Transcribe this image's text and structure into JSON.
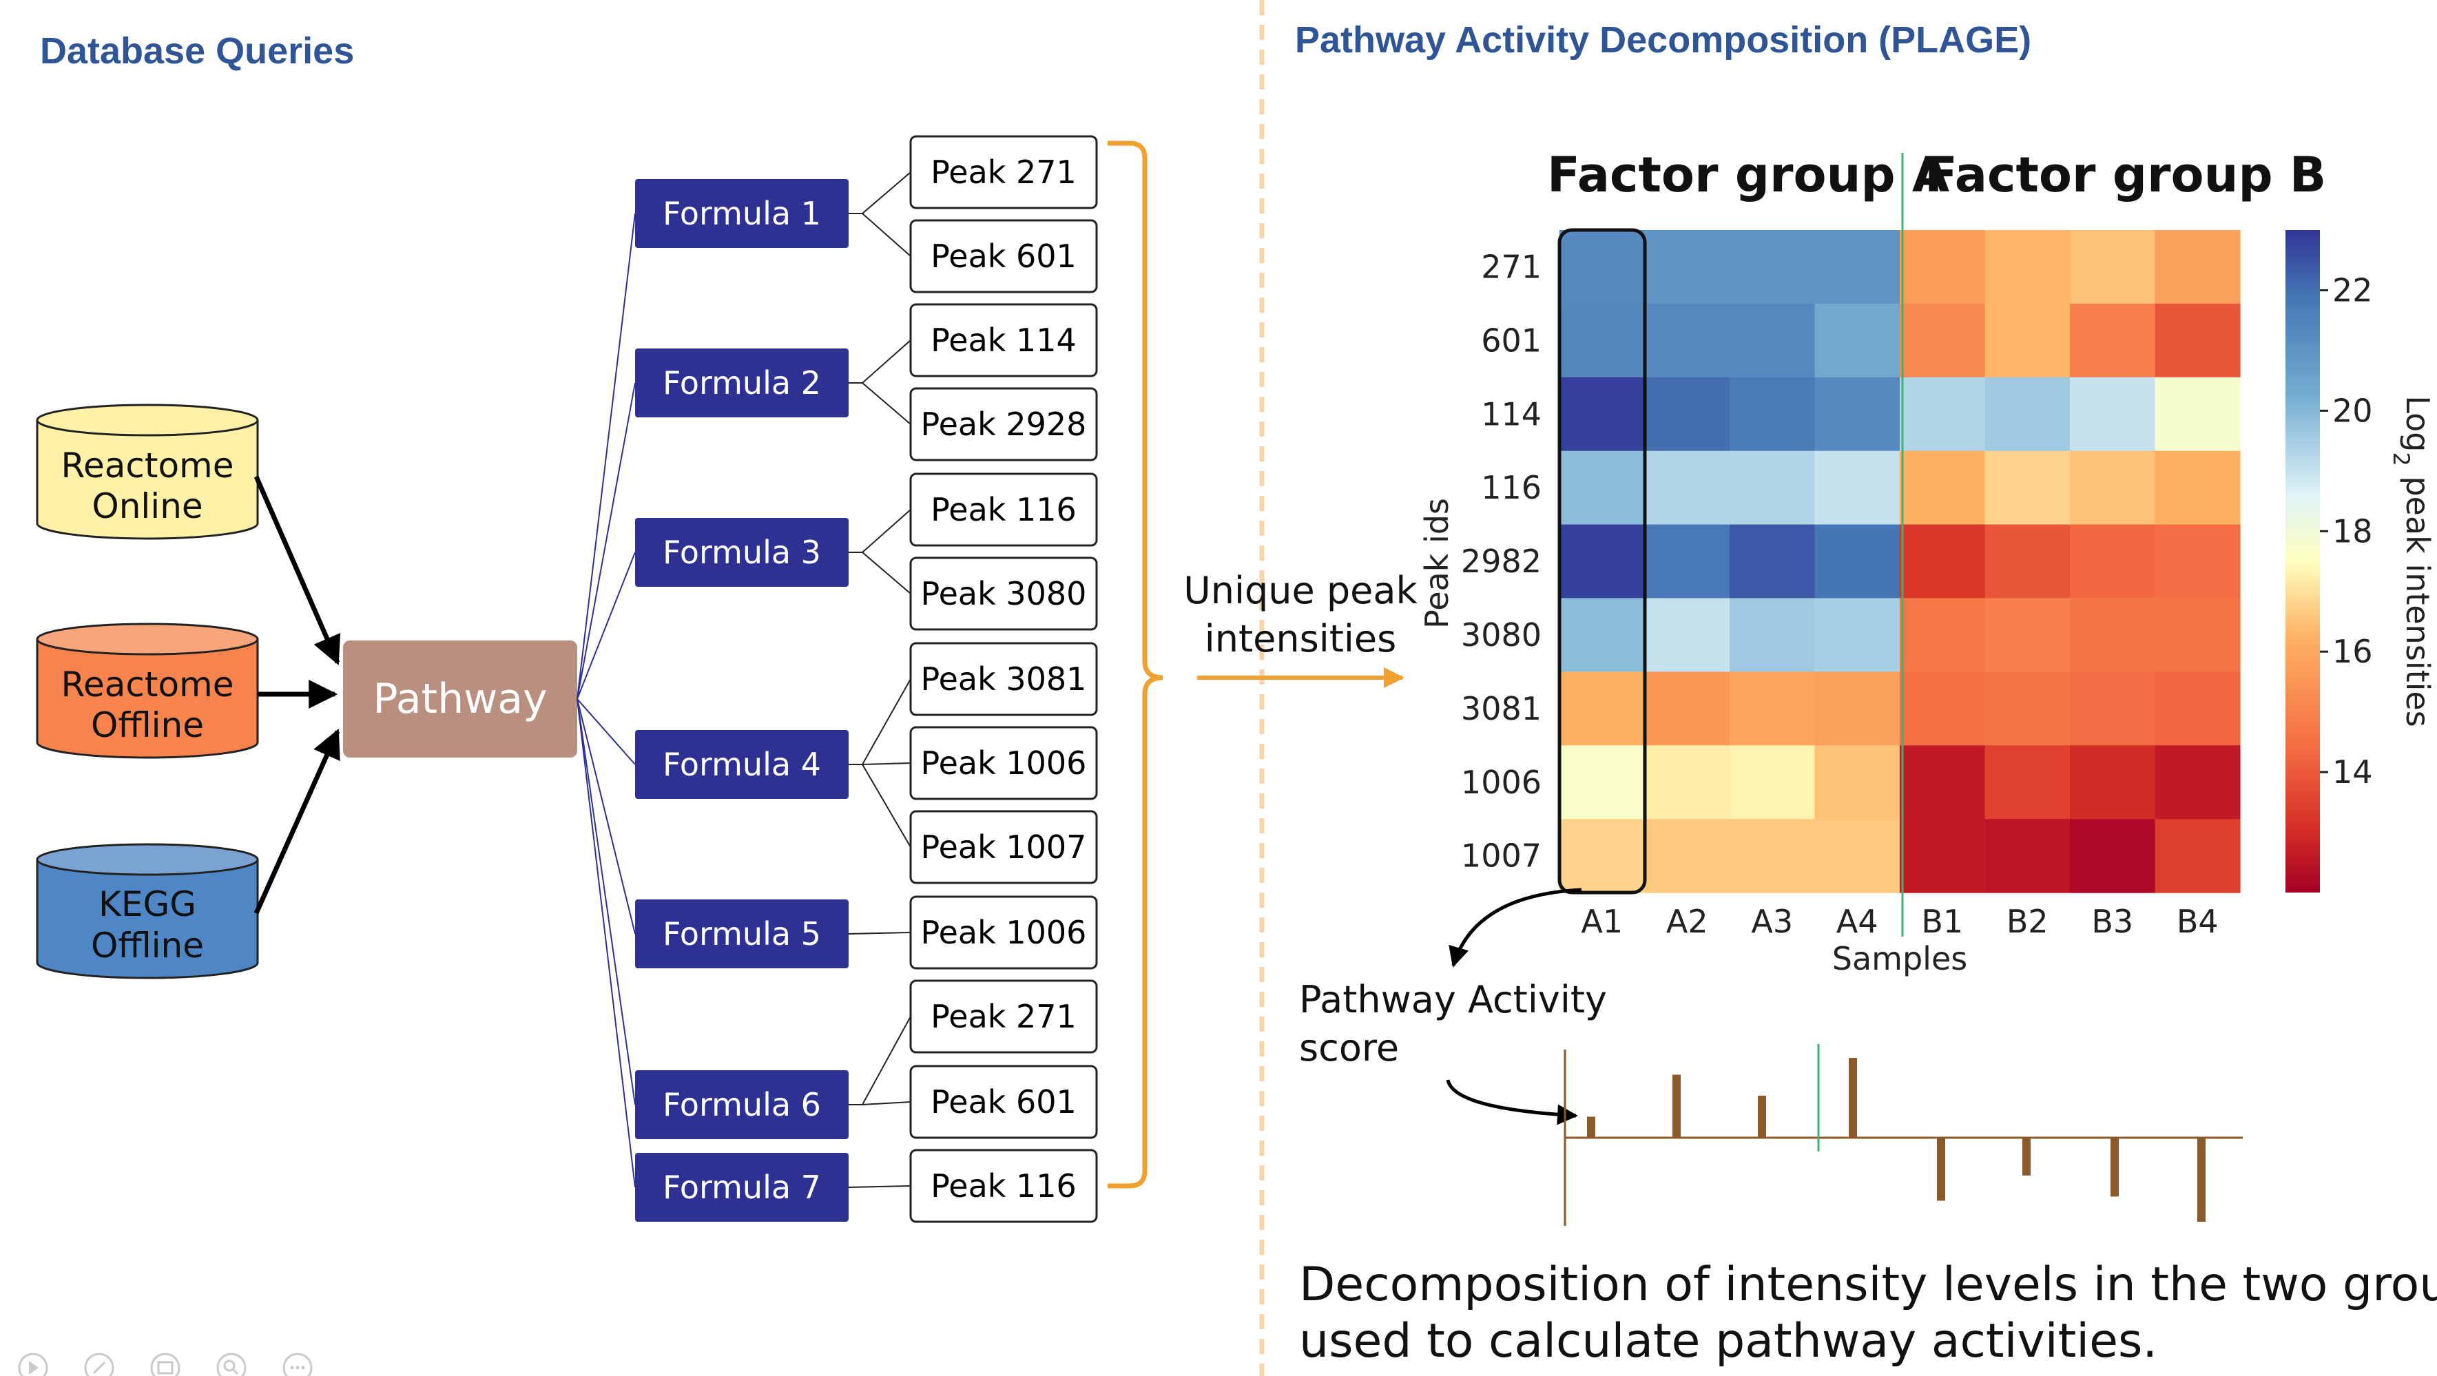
{
  "left_panel": {
    "heading": "Database Queries",
    "databases": [
      {
        "line1": "Reactome",
        "line2": "Online",
        "fill": "#fff2a8"
      },
      {
        "line1": "Reactome",
        "line2": "Offline",
        "fill": "#f7834d"
      },
      {
        "line1": "KEGG",
        "line2": "Offline",
        "fill": "#4f86c6"
      }
    ],
    "pathway_label": "Pathway",
    "formulas": [
      "Formula 1",
      "Formula 2",
      "Formula 3",
      "Formula 4",
      "Formula 5",
      "Formula 6",
      "Formula 7"
    ],
    "peaks": [
      "Peak 271",
      "Peak 601",
      "Peak 114",
      "Peak 2928",
      "Peak 116",
      "Peak 3080",
      "Peak 3081",
      "Peak 1006",
      "Peak 1007",
      "Peak 1006",
      "Peak 271",
      "Peak 601",
      "Peak 116"
    ],
    "unique_label_line1": "Unique peak",
    "unique_label_line2": "intensities"
  },
  "right_panel": {
    "heading": "Pathway Activity Decomposition (PLAGE)",
    "group_a": "Factor group A",
    "group_b": "Factor group B",
    "score_line1": "Pathway Activity",
    "score_line2": "score",
    "bottom_line1": "Decomposition of intensity levels in the two groups is",
    "bottom_line2": "used to calculate pathway activities."
  },
  "colors": {
    "heading": "#2f5597",
    "formula": "#2e3192",
    "pathway": "#b98f80",
    "bracket": "#f0a030",
    "divider": "#f5d5a8",
    "score_bar": "#8b5a2b"
  },
  "chart_data": [
    {
      "type": "heatmap",
      "xlabel": "Samples",
      "ylabel": "Peak ids",
      "colorbar_label_prefix": "Log",
      "colorbar_label_sub": "2",
      "colorbar_label_suffix": " peak intensities",
      "colorbar_range": [
        12,
        23
      ],
      "colorbar_ticks": [
        22,
        20,
        18,
        16,
        14
      ],
      "colormap": "RdYlBu",
      "x": [
        "A1",
        "A2",
        "A3",
        "A4",
        "B1",
        "B2",
        "B3",
        "B4"
      ],
      "y": [
        "271",
        "601",
        "114",
        "116",
        "2982",
        "3080",
        "3081",
        "1006",
        "1007"
      ],
      "values": [
        [
          21.3,
          21.0,
          21.0,
          21.0,
          15.7,
          16.3,
          16.5,
          15.8
        ],
        [
          21.4,
          21.3,
          21.3,
          20.4,
          15.2,
          16.3,
          14.9,
          13.9
        ],
        [
          22.8,
          22.0,
          21.7,
          21.3,
          19.3,
          19.6,
          19.0,
          17.8
        ],
        [
          19.9,
          19.3,
          19.3,
          19.0,
          16.2,
          16.8,
          16.5,
          16.2
        ],
        [
          22.8,
          21.8,
          22.4,
          21.9,
          13.2,
          13.9,
          14.3,
          14.4
        ],
        [
          19.9,
          19.0,
          19.6,
          19.5,
          14.7,
          14.9,
          14.6,
          14.6
        ],
        [
          16.2,
          15.6,
          15.9,
          15.8,
          14.5,
          14.6,
          14.4,
          14.3
        ],
        [
          17.7,
          17.2,
          17.3,
          16.5,
          12.6,
          13.5,
          13.0,
          12.6
        ],
        [
          16.8,
          16.6,
          16.6,
          16.6,
          12.6,
          12.5,
          12.2,
          13.4
        ]
      ]
    },
    {
      "type": "bar",
      "title": "",
      "categories": [
        "A1",
        "A2",
        "A3",
        "A4",
        "B1",
        "B2",
        "B3",
        "B4"
      ],
      "values": [
        0.25,
        0.75,
        0.5,
        0.95,
        -0.75,
        -0.45,
        -0.7,
        -1.0
      ]
    }
  ]
}
